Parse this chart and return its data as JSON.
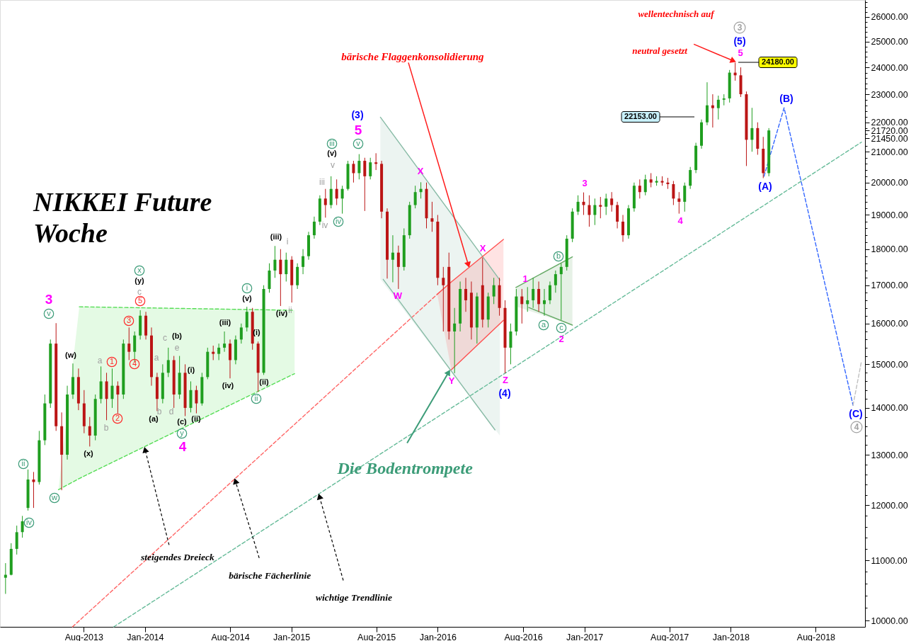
{
  "chart_data": {
    "type": "candlestick",
    "title": "NIKKEI Future\nWoche",
    "log": true,
    "grid": false,
    "xlim": [
      "2013-01-13",
      "2018-11-23"
    ],
    "ylim": [
      9900,
      26700
    ],
    "xticks": [
      {
        "value": "2013-08-01",
        "label": "Aug-2013"
      },
      {
        "value": "2014-01-01",
        "label": "Jan-2014"
      },
      {
        "value": "2014-08-01",
        "label": "Aug-2014"
      },
      {
        "value": "2015-01-01",
        "label": "Jan-2015"
      },
      {
        "value": "2015-08-01",
        "label": "Aug-2015"
      },
      {
        "value": "2016-01-01",
        "label": "Jan-2016"
      },
      {
        "value": "2016-08-01",
        "label": "Aug-2016"
      },
      {
        "value": "2017-01-01",
        "label": "Jan-2017"
      },
      {
        "value": "2017-08-01",
        "label": "Aug-2017"
      },
      {
        "value": "2018-01-01",
        "label": "Jan-2018"
      },
      {
        "value": "2018-08-01",
        "label": "Aug-2018"
      }
    ],
    "yticks": [
      {
        "value": 10000,
        "label": "10000.00"
      },
      {
        "value": 11000,
        "label": "11000.00"
      },
      {
        "value": 12000,
        "label": "12000.00"
      },
      {
        "value": 13000,
        "label": "13000.00"
      },
      {
        "value": 14000,
        "label": "14000.00"
      },
      {
        "value": 15000,
        "label": "15000.00"
      },
      {
        "value": 16000,
        "label": "16000.00"
      },
      {
        "value": 17000,
        "label": "17000.00"
      },
      {
        "value": 18000,
        "label": "18000.00"
      },
      {
        "value": 19000,
        "label": "19000.00"
      },
      {
        "value": 20000,
        "label": "20000.00"
      },
      {
        "value": 21000,
        "label": "21000.00"
      },
      {
        "value": 22000,
        "label": "22000.00"
      },
      {
        "value": 23000,
        "label": "23000.00"
      },
      {
        "value": 24000,
        "label": "24000.00"
      },
      {
        "value": 25000,
        "label": "25000.00"
      },
      {
        "value": 26000,
        "label": "26000.00"
      },
      {
        "value": 21720,
        "label": "21720.00"
      },
      {
        "value": 21450,
        "label": "21450.00"
      },
      {
        "value": 10200,
        "label": null
      },
      {
        "value": 10400,
        "label": null
      },
      {
        "value": 10600,
        "label": null
      },
      {
        "value": 10800,
        "label": null
      },
      {
        "value": 11200,
        "label": null
      },
      {
        "value": 11400,
        "label": null
      },
      {
        "value": 11600,
        "label": null
      },
      {
        "value": 11800,
        "label": null
      },
      {
        "value": 12200,
        "label": null
      },
      {
        "value": 12400,
        "label": null
      },
      {
        "value": 12600,
        "label": null
      },
      {
        "value": 12800,
        "label": null
      },
      {
        "value": 13200,
        "label": null
      },
      {
        "value": 13400,
        "label": null
      },
      {
        "value": 13600,
        "label": null
      },
      {
        "value": 13800,
        "label": null
      },
      {
        "value": 14200,
        "label": null
      },
      {
        "value": 14400,
        "label": null
      },
      {
        "value": 14600,
        "label": null
      },
      {
        "value": 14800,
        "label": null
      },
      {
        "value": 15200,
        "label": null
      },
      {
        "value": 15400,
        "label": null
      },
      {
        "value": 15600,
        "label": null
      },
      {
        "value": 15800,
        "label": null
      },
      {
        "value": 16200,
        "label": null
      },
      {
        "value": 16400,
        "label": null
      },
      {
        "value": 16600,
        "label": null
      },
      {
        "value": 16800,
        "label": null
      },
      {
        "value": 17200,
        "label": null
      },
      {
        "value": 17400,
        "label": null
      },
      {
        "value": 17600,
        "label": null
      },
      {
        "value": 17800,
        "label": null
      },
      {
        "value": 18200,
        "label": null
      },
      {
        "value": 18400,
        "label": null
      },
      {
        "value": 18600,
        "label": null
      },
      {
        "value": 18800,
        "label": null
      },
      {
        "value": 19200,
        "label": null
      },
      {
        "value": 19400,
        "label": null
      },
      {
        "value": 19600,
        "label": null
      },
      {
        "value": 19800,
        "label": null
      },
      {
        "value": 20200,
        "label": null
      },
      {
        "value": 20400,
        "label": null
      },
      {
        "value": 20600,
        "label": null
      },
      {
        "value": 20800,
        "label": null
      },
      {
        "value": 21200,
        "label": null
      },
      {
        "value": 21600,
        "label": null
      },
      {
        "value": 21800,
        "label": null
      },
      {
        "value": 22200,
        "label": null
      },
      {
        "value": 22400,
        "label": null
      },
      {
        "value": 22600,
        "label": null
      },
      {
        "value": 22800,
        "label": null
      },
      {
        "value": 23200,
        "label": null
      },
      {
        "value": 23400,
        "label": null
      },
      {
        "value": 23600,
        "label": null
      },
      {
        "value": 23800,
        "label": null
      },
      {
        "value": 24200,
        "label": null
      },
      {
        "value": 24400,
        "label": null
      },
      {
        "value": 24600,
        "label": null
      },
      {
        "value": 24800,
        "label": null
      },
      {
        "value": 25200,
        "label": null
      },
      {
        "value": 25400,
        "label": null
      },
      {
        "value": 25600,
        "label": null
      },
      {
        "value": 25800,
        "label": null
      },
      {
        "value": 26200,
        "label": null
      },
      {
        "value": 26400,
        "label": null
      },
      {
        "value": 26600,
        "label": null
      }
    ],
    "x": [
      "2013-01-18",
      "2013-02-01",
      "2013-02-15",
      "2013-03-01",
      "2013-03-15",
      "2013-03-29",
      "2013-04-12",
      "2013-04-26",
      "2013-05-10",
      "2013-05-24",
      "2013-06-07",
      "2013-06-21",
      "2013-07-05",
      "2013-07-19",
      "2013-08-02",
      "2013-08-16",
      "2013-08-30",
      "2013-09-13",
      "2013-09-27",
      "2013-10-11",
      "2013-10-25",
      "2013-11-08",
      "2013-11-22",
      "2013-12-06",
      "2013-12-20",
      "2014-01-03",
      "2014-01-17",
      "2014-01-31",
      "2014-02-14",
      "2014-02-28",
      "2014-03-14",
      "2014-03-28",
      "2014-04-11",
      "2014-04-25",
      "2014-05-09",
      "2014-05-23",
      "2014-06-06",
      "2014-06-20",
      "2014-07-04",
      "2014-07-18",
      "2014-08-01",
      "2014-08-15",
      "2014-08-29",
      "2014-09-12",
      "2014-09-26",
      "2014-10-10",
      "2014-10-24",
      "2014-11-07",
      "2014-11-21",
      "2014-12-05",
      "2014-12-19",
      "2015-01-02",
      "2015-01-16",
      "2015-01-30",
      "2015-02-13",
      "2015-02-27",
      "2015-03-13",
      "2015-03-27",
      "2015-04-10",
      "2015-04-24",
      "2015-05-08",
      "2015-05-22",
      "2015-06-05",
      "2015-06-19",
      "2015-07-03",
      "2015-07-17",
      "2015-07-31",
      "2015-08-14",
      "2015-08-28",
      "2015-09-11",
      "2015-09-25",
      "2015-10-09",
      "2015-10-23",
      "2015-11-06",
      "2015-11-20",
      "2015-12-04",
      "2015-12-18",
      "2016-01-01",
      "2016-01-15",
      "2016-01-29",
      "2016-02-12",
      "2016-02-26",
      "2016-03-11",
      "2016-03-25",
      "2016-04-08",
      "2016-04-22",
      "2016-05-06",
      "2016-05-20",
      "2016-06-03",
      "2016-06-17",
      "2016-07-01",
      "2016-07-15",
      "2016-07-29",
      "2016-08-12",
      "2016-08-26",
      "2016-09-09",
      "2016-09-23",
      "2016-10-07",
      "2016-10-21",
      "2016-11-04",
      "2016-11-18",
      "2016-12-02",
      "2016-12-16",
      "2016-12-30",
      "2017-01-13",
      "2017-01-27",
      "2017-02-10",
      "2017-02-24",
      "2017-03-10",
      "2017-03-24",
      "2017-04-07",
      "2017-04-21",
      "2017-05-05",
      "2017-05-19",
      "2017-06-02",
      "2017-06-16",
      "2017-06-30",
      "2017-07-14",
      "2017-07-28",
      "2017-08-11",
      "2017-08-25",
      "2017-09-08",
      "2017-09-22",
      "2017-10-06",
      "2017-10-20",
      "2017-11-03",
      "2017-11-17",
      "2017-12-01",
      "2017-12-15",
      "2017-12-29",
      "2018-01-12",
      "2018-01-26",
      "2018-02-09",
      "2018-02-23",
      "2018-03-09",
      "2018-03-23",
      "2018-04-06"
    ],
    "ohlc": [
      [
        10700,
        10950,
        10430,
        10750
      ],
      [
        10750,
        11300,
        10740,
        11200
      ],
      [
        11200,
        11620,
        11100,
        11500
      ],
      [
        11500,
        11800,
        11400,
        11700
      ],
      [
        11950,
        12700,
        11900,
        12500
      ],
      [
        12500,
        12650,
        11950,
        12450
      ],
      [
        12450,
        13500,
        12400,
        13300
      ],
      [
        13300,
        14300,
        13200,
        14100
      ],
      [
        14100,
        15600,
        14000,
        15500
      ],
      [
        15500,
        16010,
        13500,
        13600
      ],
      [
        13600,
        13900,
        12290,
        13000
      ],
      [
        13000,
        14500,
        12900,
        14300
      ],
      [
        14300,
        15020,
        14200,
        14700
      ],
      [
        14700,
        14900,
        13950,
        14100
      ],
      [
        14100,
        14400,
        13450,
        13600
      ],
      [
        13600,
        13800,
        13170,
        13400
      ],
      [
        13400,
        14300,
        13300,
        14200
      ],
      [
        14200,
        14950,
        14100,
        14600
      ],
      [
        14600,
        14800,
        13730,
        14200
      ],
      [
        14200,
        14900,
        14000,
        14500
      ],
      [
        14500,
        14600,
        13880,
        14300
      ],
      [
        14300,
        15600,
        14200,
        15500
      ],
      [
        15500,
        15900,
        15100,
        15300
      ],
      [
        15300,
        15800,
        15050,
        15700
      ],
      [
        15700,
        16340,
        15600,
        16200
      ],
      [
        16200,
        16300,
        15600,
        15700
      ],
      [
        15700,
        15900,
        14500,
        14700
      ],
      [
        14700,
        14800,
        13930,
        14200
      ],
      [
        14200,
        15000,
        14100,
        14800
      ],
      [
        14800,
        15400,
        14700,
        15100
      ],
      [
        15100,
        15200,
        14000,
        14300
      ],
      [
        14300,
        15200,
        14200,
        14800
      ],
      [
        14800,
        15000,
        13820,
        14000
      ],
      [
        14000,
        14600,
        13900,
        14400
      ],
      [
        14400,
        14500,
        13880,
        14100
      ],
      [
        14100,
        14800,
        14050,
        14700
      ],
      [
        14700,
        15400,
        14650,
        15300
      ],
      [
        15300,
        15450,
        15100,
        15250
      ],
      [
        15250,
        15500,
        15100,
        15400
      ],
      [
        15400,
        15800,
        15300,
        15500
      ],
      [
        15500,
        15600,
        14670,
        15100
      ],
      [
        15100,
        15700,
        15000,
        15600
      ],
      [
        15600,
        16000,
        15500,
        15900
      ],
      [
        15900,
        16430,
        15800,
        16300
      ],
      [
        16300,
        16400,
        15350,
        15500
      ],
      [
        15500,
        15550,
        14360,
        14800
      ],
      [
        14800,
        17000,
        14750,
        16900
      ],
      [
        16900,
        17600,
        16800,
        17400
      ],
      [
        17400,
        18090,
        17200,
        17700
      ],
      [
        17700,
        18000,
        16450,
        17300
      ],
      [
        17300,
        17900,
        17100,
        17700
      ],
      [
        17700,
        17800,
        16540,
        17000
      ],
      [
        17000,
        17600,
        16900,
        17500
      ],
      [
        17500,
        18000,
        17300,
        17800
      ],
      [
        17800,
        18500,
        17700,
        18400
      ],
      [
        18400,
        18950,
        18300,
        18800
      ],
      [
        18800,
        19600,
        18700,
        19500
      ],
      [
        19500,
        19800,
        18920,
        19300
      ],
      [
        19300,
        20200,
        19200,
        19800
      ],
      [
        19800,
        20100,
        19300,
        19500
      ],
      [
        19500,
        19900,
        19040,
        19800
      ],
      [
        19800,
        20700,
        19750,
        20600
      ],
      [
        20600,
        20700,
        20000,
        20300
      ],
      [
        20300,
        20920,
        20100,
        20700
      ],
      [
        20700,
        20800,
        19120,
        20200
      ],
      [
        20200,
        20800,
        20100,
        20650
      ],
      [
        20650,
        20950,
        20400,
        20600
      ],
      [
        20600,
        20700,
        18900,
        19100
      ],
      [
        19100,
        19200,
        17180,
        17700
      ],
      [
        17700,
        18400,
        17080,
        17900
      ],
      [
        17900,
        18100,
        16900,
        17500
      ],
      [
        17500,
        18600,
        17400,
        18400
      ],
      [
        18400,
        19400,
        18300,
        19300
      ],
      [
        19300,
        19900,
        19200,
        19700
      ],
      [
        19700,
        20010,
        19500,
        19800
      ],
      [
        19800,
        20000,
        18600,
        18900
      ],
      [
        18900,
        19400,
        18500,
        18800
      ],
      [
        18800,
        19000,
        17000,
        17200
      ],
      [
        17200,
        17500,
        15800,
        17000
      ],
      [
        17500,
        17900,
        15600,
        15800
      ],
      [
        15800,
        16400,
        14790,
        16000
      ],
      [
        16000,
        17100,
        15800,
        16900
      ],
      [
        16900,
        17200,
        16300,
        16600
      ],
      [
        16800,
        17100,
        15600,
        15900
      ],
      [
        15900,
        16800,
        15500,
        16700
      ],
      [
        17000,
        17760,
        15900,
        16100
      ],
      [
        16100,
        16800,
        15900,
        16700
      ],
      [
        16700,
        17200,
        16500,
        17000
      ],
      [
        17000,
        17200,
        16200,
        16400
      ],
      [
        16400,
        16600,
        14790,
        15400
      ],
      [
        15400,
        16000,
        15000,
        15800
      ],
      [
        15800,
        16900,
        15700,
        16700
      ],
      [
        16700,
        16900,
        16000,
        16500
      ],
      [
        16500,
        16950,
        16300,
        16600
      ],
      [
        16600,
        17200,
        16400,
        16900
      ],
      [
        16900,
        17100,
        16300,
        16500
      ],
      [
        16500,
        16900,
        16200,
        16600
      ],
      [
        16600,
        17100,
        16500,
        17000
      ],
      [
        17000,
        17400,
        16800,
        17300
      ],
      [
        17300,
        17600,
        16090,
        17500
      ],
      [
        17500,
        18400,
        17400,
        18300
      ],
      [
        18300,
        19200,
        18200,
        19100
      ],
      [
        19100,
        19600,
        19000,
        19400
      ],
      [
        19400,
        19690,
        19000,
        19300
      ],
      [
        19300,
        19600,
        18650,
        19000
      ],
      [
        19000,
        19500,
        18700,
        19300
      ],
      [
        19300,
        19550,
        18900,
        19250
      ],
      [
        19250,
        19650,
        19000,
        19500
      ],
      [
        19500,
        19700,
        19100,
        19300
      ],
      [
        19300,
        19400,
        18600,
        18800
      ],
      [
        18800,
        19000,
        18210,
        18400
      ],
      [
        18400,
        19300,
        18300,
        19200
      ],
      [
        19200,
        20000,
        19100,
        19900
      ],
      [
        19900,
        20100,
        19500,
        19700
      ],
      [
        19700,
        20250,
        19600,
        20100
      ],
      [
        20100,
        20300,
        19850,
        20000
      ],
      [
        20000,
        20200,
        19900,
        20050
      ],
      [
        20050,
        20200,
        19900,
        20000
      ],
      [
        20000,
        20150,
        19800,
        19950
      ],
      [
        19950,
        20050,
        19300,
        19500
      ],
      [
        19500,
        19700,
        19040,
        19400
      ],
      [
        19400,
        20000,
        19100,
        19900
      ],
      [
        19900,
        20500,
        19800,
        20400
      ],
      [
        20400,
        21300,
        20300,
        21200
      ],
      [
        21200,
        22100,
        21100,
        22000
      ],
      [
        22000,
        23440,
        21900,
        22600
      ],
      [
        22600,
        23000,
        21820,
        22500
      ],
      [
        22500,
        22950,
        22100,
        22800
      ],
      [
        22800,
        23000,
        22600,
        22850
      ],
      [
        22850,
        23900,
        22700,
        23800
      ],
      [
        23800,
        24180,
        23500,
        23700
      ],
      [
        23700,
        24000,
        22900,
        23000
      ],
      [
        23000,
        23100,
        20530,
        21400
      ],
      [
        21400,
        22510,
        21000,
        21800
      ],
      [
        21800,
        22000,
        20900,
        21100
      ],
      [
        21100,
        21500,
        20140,
        20300
      ],
      [
        20300,
        21800,
        20200,
        21720
      ]
    ],
    "colors": [
      "#1f9e1f",
      "#1f9e1f",
      "#1f9e1f",
      "#1f9e1f",
      "#1f9e1f",
      "#bb1515",
      "#1f9e1f",
      "#1f9e1f",
      "#1f9e1f",
      "#bb1515",
      "#bb1515",
      "#1f9e1f",
      "#1f9e1f",
      "#bb1515",
      "#bb1515",
      "#bb1515",
      "#1f9e1f",
      "#1f9e1f",
      "#bb1515",
      "#1f9e1f",
      "#bb1515",
      "#1f9e1f",
      "#bb1515",
      "#1f9e1f",
      "#1f9e1f",
      "#bb1515",
      "#bb1515",
      "#bb1515",
      "#1f9e1f",
      "#1f9e1f",
      "#bb1515",
      "#1f9e1f",
      "#bb1515",
      "#1f9e1f",
      "#bb1515",
      "#1f9e1f",
      "#1f9e1f",
      "#bb1515",
      "#1f9e1f",
      "#1f9e1f",
      "#bb1515",
      "#1f9e1f",
      "#1f9e1f",
      "#1f9e1f",
      "#bb1515",
      "#bb1515",
      "#1f9e1f",
      "#1f9e1f",
      "#1f9e1f",
      "#bb1515",
      "#1f9e1f",
      "#bb1515",
      "#1f9e1f",
      "#1f9e1f",
      "#1f9e1f",
      "#1f9e1f",
      "#1f9e1f",
      "#bb1515",
      "#1f9e1f",
      "#bb1515",
      "#1f9e1f",
      "#1f9e1f",
      "#bb1515",
      "#1f9e1f",
      "#bb1515",
      "#1f9e1f",
      "#bb1515",
      "#bb1515",
      "#bb1515",
      "#1f9e1f",
      "#bb1515",
      "#1f9e1f",
      "#1f9e1f",
      "#1f9e1f",
      "#1f9e1f",
      "#bb1515",
      "#bb1515",
      "#bb1515",
      "#bb1515",
      "#bb1515",
      "#1f9e1f",
      "#1f9e1f",
      "#bb1515",
      "#bb1515",
      "#1f9e1f",
      "#bb1515",
      "#1f9e1f",
      "#1f9e1f",
      "#bb1515",
      "#bb1515",
      "#1f9e1f",
      "#1f9e1f",
      "#bb1515",
      "#1f9e1f",
      "#1f9e1f",
      "#bb1515",
      "#1f9e1f",
      "#1f9e1f",
      "#1f9e1f",
      "#1f9e1f",
      "#1f9e1f",
      "#1f9e1f",
      "#1f9e1f",
      "#bb1515",
      "#bb1515",
      "#1f9e1f",
      "#bb1515",
      "#1f9e1f",
      "#bb1515",
      "#bb1515",
      "#bb1515",
      "#1f9e1f",
      "#1f9e1f",
      "#bb1515",
      "#1f9e1f",
      "#bb1515",
      "#1f9e1f",
      "#bb1515",
      "#bb1515",
      "#bb1515",
      "#bb1515",
      "#1f9e1f",
      "#1f9e1f",
      "#1f9e1f",
      "#1f9e1f",
      "#1f9e1f",
      "#bb1515",
      "#1f9e1f",
      "#1f9e1f",
      "#1f9e1f",
      "#bb1515",
      "#bb1515",
      "#bb1515",
      "#1f9e1f",
      "#bb1515",
      "#bb1515",
      "#1f9e1f"
    ],
    "series": [
      {
        "type": "line",
        "color": "#55dd55",
        "line_style": "dashed",
        "x": [
          "2013-07-21",
          "2015-01-06"
        ],
        "values": [
          16430,
          16340
        ]
      },
      {
        "type": "line",
        "color": "#55dd55",
        "line_style": "dashed",
        "x": [
          "2013-05-30",
          "2013-07-21",
          "2015-01-09"
        ],
        "values": [
          12300,
          12520,
          14780
        ],
        "lower": [
          12300,
          12520,
          14780
        ],
        "upper": [
          12300,
          16430,
          16340
        ]
      },
      {
        "type": "line",
        "color": "#ff6666",
        "line_style": "dashed",
        "x": [
          "2013-07-04",
          "2015-12-31"
        ],
        "values": [
          9900,
          16760
        ]
      },
      {
        "type": "line",
        "color": "#66bb99",
        "line_style": "dashed",
        "x": [
          "2013-10-15",
          "2018-11-23"
        ],
        "values": [
          9900,
          21320
        ]
      },
      {
        "type": "line",
        "color": "#88bba6",
        "line_style": "solid",
        "x": [
          "2015-08-11",
          "2016-06-04"
        ],
        "values": [
          22180,
          17140
        ],
        "lower": [
          17160,
          13400
        ],
        "upper": [
          22180,
          17140
        ]
      },
      {
        "type": "line",
        "color": "#88bba6",
        "line_style": "solid",
        "x": [
          "2015-08-18",
          "2016-05-23"
        ],
        "values": [
          17160,
          13520
        ]
      },
      {
        "type": "line",
        "color": "#ff5050",
        "line_style": "solid",
        "x": [
          "2015-12-31",
          "2016-02-04",
          "2016-06-13"
        ],
        "values": [
          16760,
          17090,
          18280
        ],
        "lower": [
          16760,
          14870,
          16080
        ],
        "upper": [
          16760,
          17090,
          18280
        ]
      },
      {
        "type": "line",
        "color": "#ff5050",
        "line_style": "solid",
        "x": [
          "2016-02-04",
          "2016-06-13"
        ],
        "values": [
          14870,
          16080
        ]
      },
      {
        "type": "line",
        "color": "#66aa66",
        "line_style": "solid",
        "x": [
          "2016-07-14",
          "2016-12-02"
        ],
        "values": [
          16940,
          17780
        ],
        "lower": [
          16440,
          15960
        ],
        "upper": [
          16940,
          17780
        ]
      },
      {
        "type": "line",
        "color": "#66aa66",
        "line_style": "solid",
        "x": [
          "2016-08-15",
          "2016-12-02"
        ],
        "values": [
          16410,
          15960
        ]
      },
      {
        "type": "line",
        "color": "#3366ff",
        "line_style": "dashed",
        "x": [
          "2018-03-25",
          "2018-05-14",
          "2018-11-02"
        ],
        "values": [
          20200,
          22510,
          14060
        ]
      },
      {
        "type": "line",
        "color": "#c0c0c0",
        "line_style": "dashed",
        "x": [
          "2018-11-02",
          "2018-11-23"
        ],
        "values": [
          14060,
          15070
        ]
      }
    ],
    "annotations": [
      "3",
      "v",
      "ii",
      "iv",
      "w",
      "(w)",
      "(x)",
      "a",
      "b",
      "1",
      "2",
      "3",
      "4",
      "5",
      "c",
      "(y)",
      "x",
      "(a)",
      "a",
      "b",
      "c",
      "(b)",
      "e",
      "d",
      "(i)",
      "(c)",
      "y",
      "4",
      "(ii)",
      "(iii)",
      "(iv)",
      "(v)",
      "i",
      "(i)",
      "(ii)",
      "ii",
      "(iii)",
      "i",
      "(iv)",
      "ii",
      "iii",
      "iv",
      "iv",
      "v",
      "(v)",
      "iii",
      "v",
      "5",
      "(3)",
      "W",
      "X",
      "X",
      "Y",
      "Z",
      "(4)",
      "1",
      "a",
      "b",
      "c",
      "2",
      "3",
      "4",
      "5",
      "(5)",
      "3",
      "(A)",
      "(B)",
      "(C)",
      "4",
      "24180.00",
      "22153.00",
      "wellentechnisch auf",
      {
        "text": "neutral gesetzt",
        "x": "2018-01-12",
        "y": 24180
      },
      {
        "text": "bärische Flaggenkonsolidierung",
        "x": "2016-03-19",
        "y": 17470
      },
      {
        "text": "Die Bodentrompete",
        "x": "2016-02-01",
        "y": 14880
      },
      {
        "text": "steigendes Dreieck",
        "x": "2014-01-05",
        "y": 13170
      },
      {
        "text": "bärische Fächerlinie",
        "x": "2014-08-16",
        "y": 12530
      },
      {
        "text": "wichtige Trendlinie",
        "x": "2015-03-12",
        "y": 12230
      }
    ]
  }
}
